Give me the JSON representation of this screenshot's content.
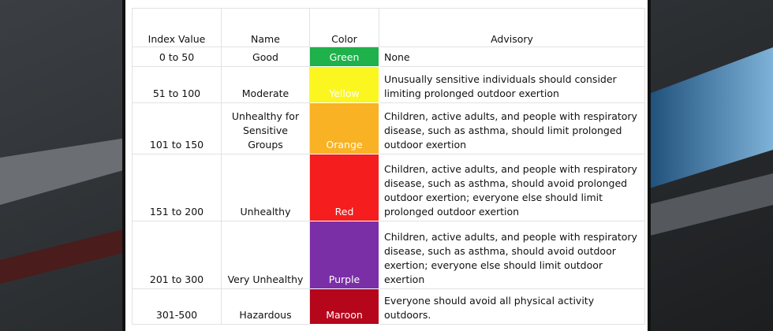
{
  "table": {
    "headers": [
      "Index Value",
      "Name",
      "Color",
      "Advisory"
    ],
    "rows": [
      [
        "0 to 50",
        "Good",
        "Green",
        "None"
      ],
      [
        "51 to 100",
        "Moderate",
        "Yellow",
        "Unusually sensitive individuals should consider limiting prolonged outdoor exertion"
      ],
      [
        "101 to 150",
        "Unhealthy for Sensitive Groups",
        "Orange",
        "Children, active adults, and people with respiratory disease, such as asthma, should limit prolonged outdoor exertion"
      ],
      [
        "151 to 200",
        "Unhealthy",
        "Red",
        "Children, active adults, and people with respiratory disease, such as asthma, should avoid prolonged outdoor exertion; everyone else should limit prolonged outdoor exertion"
      ],
      [
        "201 to 300",
        "Very Unhealthy",
        "Purple",
        "Children, active adults, and people with respiratory disease, such as asthma, should avoid outdoor exertion; everyone else should limit outdoor exertion"
      ],
      [
        "301-500",
        "Hazardous",
        "Maroon",
        "Everyone should avoid all physical activity outdoors."
      ]
    ]
  }
}
